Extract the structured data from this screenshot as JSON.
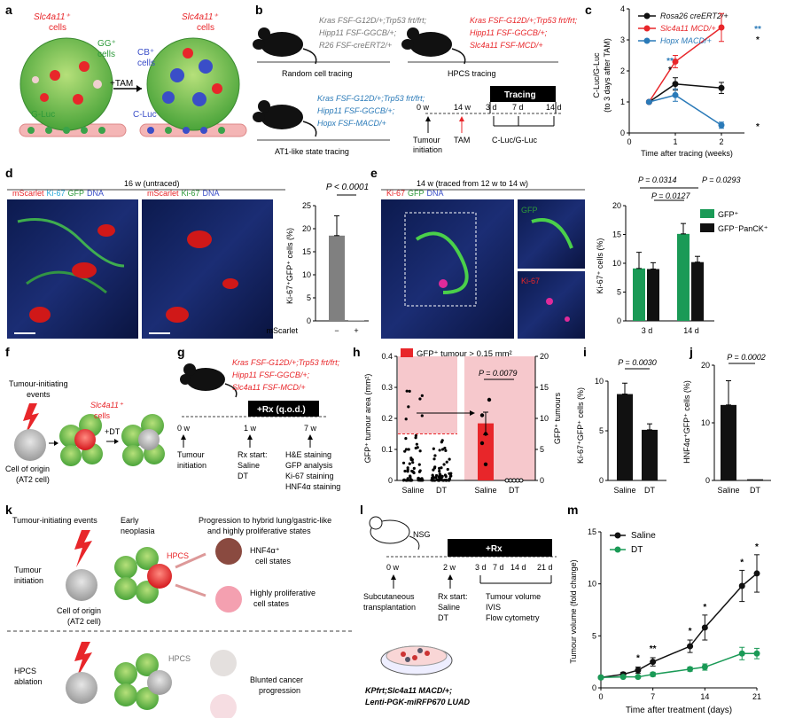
{
  "panels": {
    "a": "a",
    "b": "b",
    "c": "c",
    "d": "d",
    "e": "e",
    "f": "f",
    "g": "g",
    "h": "h",
    "i": "i",
    "j": "j",
    "k": "k",
    "l": "l",
    "m": "m"
  },
  "a": {
    "slc_left": "Slc4a11⁺",
    "slc_right": "Slc4a11⁺",
    "cells": "cells",
    "gg": "GG⁺",
    "cb": "CB⁺",
    "gluc": "G-Luc",
    "cluc": "C-Luc",
    "tam": "+TAM"
  },
  "b": {
    "random": {
      "l1": "Kras FSF-G12D/+;Trp53 frt/frt;",
      "l2": "Hipp11 FSF-GGCB/+;",
      "l3": "R26 FSF-creERT2/+",
      "title": "Random cell tracing"
    },
    "hpcs": {
      "l1": "Kras FSF-G12D/+;Trp53 frt/frt;",
      "l2": "Hipp11 FSF-GGCB/+;",
      "l3": "Slc4a11 FSF-MCD/+",
      "title": "HPCS tracing"
    },
    "at1": {
      "l1": "Kras FSF-G12D/+;Trp53 frt/frt;",
      "l2": "Hipp11 FSF-GGCB/+;",
      "l3": "Hopx FSF-MACD/+",
      "title": "AT1-like state tracing"
    },
    "timeline": {
      "tracing": "Tracing",
      "t0": "0 w",
      "t14w": "14 w",
      "t3d": "3 d",
      "t7d": "7 d",
      "t14d": "14 d",
      "tumour": "Tumour",
      "initiation": "initiation",
      "tam": "TAM",
      "cluc": "C-Luc/G-Luc"
    }
  },
  "d": {
    "title": "16 w (untraced)",
    "m_scarlet": "mScarlet",
    "ki67": "Ki-67",
    "gfp": "GFP",
    "dna": "DNA"
  },
  "e": {
    "title": "14 w (traced from 12 w to 14 w)",
    "ki67": "Ki-67",
    "gfp": "GFP",
    "dna": "DNA"
  },
  "f": {
    "l1": "Tumour-initiating",
    "l2": "events",
    "slc": "Slc4a11⁺",
    "cells": "cells",
    "dt": "+DT",
    "origin1": "Cell of origin",
    "origin2": "(AT2 cell)"
  },
  "g": {
    "l1": "Kras FSF-G12D/+;Trp53 frt/frt;",
    "l2": "Hipp11 FSF-GGCB/+;",
    "l3": "Slc4a11 FSF-MCD/+",
    "rx": "+Rx (q.o.d.)",
    "t0": "0 w",
    "t1": "1 w",
    "t7": "7 w",
    "tumour": "Tumour",
    "initiation": "initiation",
    "rxstart": "Rx start:",
    "saline": "Saline",
    "dt": "DT",
    "a1": "H&E staining",
    "a2": "GFP analysis",
    "a3": "Ki-67 staining",
    "a4": "HNF4α staining"
  },
  "k": {
    "events": "Tumour-initiating events",
    "early": "Early",
    "neoplasia": "neoplasia",
    "prog1": "Progression to hybrid lung/gastric-like",
    "prog2": "and highly proliferative states",
    "tumour": "Tumour",
    "initiation": "initiation",
    "origin1": "Cell of origin",
    "origin2": "(AT2 cell)",
    "hpcs": "HPCS",
    "hnf": "HNF4α⁺",
    "cellstates": "cell states",
    "highly": "Highly proliferative",
    "cellstates2": "cell states",
    "abl1": "HPCS",
    "abl2": "ablation",
    "blunted1": "Blunted cancer",
    "blunted2": "progression"
  },
  "l": {
    "nsg": "NSG",
    "rx": "+Rx",
    "t0": "0 w",
    "t2": "2 w",
    "t3d": "3 d",
    "t7d": "7 d",
    "t14d": "14 d",
    "t21d": "21 d",
    "subq1": "Subcutaneous",
    "subq2": "transplantation",
    "rxstart": "Rx start:",
    "saline": "Saline",
    "dt": "DT",
    "vol": "Tumour volume",
    "ivis": "IVIS",
    "flow": "Flow cytometry",
    "line1": "KPfrt;Slc4a11 MACD/+;",
    "line2": "Lenti-PGK-miRFP670 LUAD"
  },
  "colors": {
    "red": "#e8262a",
    "blue": "#2a7ab8",
    "black": "#111111",
    "green": "#1a9a56",
    "gray": "#888888"
  },
  "chart_data": [
    {
      "id": "c",
      "type": "line",
      "xlabel": "Time after tracing (weeks)",
      "ylabel": "C-Luc/G-Luc (to 3 days after TAM)",
      "xlim": [
        0,
        2.5
      ],
      "ylim": [
        0,
        4
      ],
      "xticks": [
        0,
        1,
        2
      ],
      "yticks": [
        0,
        1,
        2,
        3,
        4
      ],
      "series": [
        {
          "name": "Rosa26 creERT2/+",
          "color": "#111111",
          "x": [
            0.43,
            1,
            2
          ],
          "y": [
            1,
            1.58,
            1.45
          ],
          "err": [
            0,
            0.2,
            0.18
          ]
        },
        {
          "name": "Slc4a11 MCD/+",
          "color": "#e8262a",
          "x": [
            0.43,
            1,
            2
          ],
          "y": [
            1,
            2.3,
            3.4
          ],
          "err": [
            0,
            0.2,
            0.45
          ]
        },
        {
          "name": "Hopx MACD/+",
          "color": "#2a7ab8",
          "x": [
            0.43,
            1,
            2
          ],
          "y": [
            1,
            1.22,
            0.25
          ],
          "err": [
            0,
            0.2,
            0.1
          ]
        }
      ],
      "annotations": [
        "**",
        "*",
        "**",
        "*",
        "*"
      ]
    },
    {
      "id": "d",
      "type": "bar",
      "categories": [
        "−",
        "+"
      ],
      "values": [
        18.5,
        0.1
      ],
      "err": [
        4.3,
        0
      ],
      "ylabel": "Ki-67⁺GFP⁺ cells (%)",
      "xlabel": "mScarlet",
      "ylim": [
        0,
        25
      ],
      "yticks": [
        0,
        5,
        10,
        15,
        20,
        25
      ],
      "pvalue": "P < 0.0001"
    },
    {
      "id": "e",
      "type": "bar",
      "categories": [
        "3 d",
        "14 d"
      ],
      "series": [
        {
          "name": "GFP⁺",
          "color": "#1a9a56",
          "values": [
            9.1,
            15.1
          ],
          "err": [
            2.8,
            1.8
          ]
        },
        {
          "name": "GFP⁻PanCK⁺",
          "color": "#111111",
          "values": [
            9.0,
            10.2
          ],
          "err": [
            1.1,
            1.0
          ]
        }
      ],
      "ylabel": "Ki-67⁺ cells (%)",
      "ylim": [
        0,
        20
      ],
      "yticks": [
        0,
        5,
        10,
        15,
        20
      ],
      "pvalues": [
        "P = 0.0314",
        "P = 0.0293",
        "P = 0.0127"
      ]
    },
    {
      "id": "h",
      "type": "scatter",
      "categories": [
        "Saline",
        "DT",
        "Saline",
        "DT"
      ],
      "legend": "GFP⁺ tumour > 0.15 mm²",
      "ylabel_left": "GFP⁺ tumour area (mm²)",
      "ylabel_right": "GFP⁺ tumours",
      "ylim_left": [
        0,
        0.4
      ],
      "yticks_left": [
        0,
        0.1,
        0.2,
        0.3,
        0.4
      ],
      "ylim_right": [
        0,
        20
      ],
      "yticks_right": [
        0,
        5,
        10,
        15,
        20
      ],
      "threshold": 0.15,
      "bar_values": [
        9.2,
        0
      ],
      "bar_err": [
        1.8,
        0
      ],
      "points_right": [
        [
          10.5,
          7.5,
          13,
          6,
          2.6
        ],
        [
          0,
          0,
          0,
          0,
          0
        ]
      ],
      "pvalue": "P = 0.0079"
    },
    {
      "id": "i",
      "type": "bar",
      "categories": [
        "Saline",
        "DT"
      ],
      "values": [
        8.7,
        5.1
      ],
      "err": [
        1.1,
        0.6
      ],
      "ylabel": "Ki-67⁺GFP⁺ cells (%)",
      "ylim": [
        0,
        10
      ],
      "yticks": [
        0,
        5,
        10
      ],
      "pvalue": "P = 0.0030"
    },
    {
      "id": "j",
      "type": "bar",
      "categories": [
        "Saline",
        "DT"
      ],
      "values": [
        13.1,
        0.2
      ],
      "err": [
        4.2,
        0
      ],
      "ylabel": "HNF4α⁺GFP⁺ cells (%)",
      "ylim": [
        0,
        20
      ],
      "yticks": [
        0,
        10,
        20
      ],
      "pvalue": "P = 0.0002"
    },
    {
      "id": "m",
      "type": "line",
      "xlabel": "Time after treatment (days)",
      "ylabel": "Tumour volume (fold change)",
      "xlim": [
        0,
        21
      ],
      "ylim": [
        0,
        15
      ],
      "xticks": [
        0,
        7,
        14,
        21
      ],
      "yticks": [
        0,
        5,
        10,
        15
      ],
      "series": [
        {
          "name": "Saline",
          "color": "#111111",
          "x": [
            0,
            3,
            5,
            7,
            12,
            14,
            19,
            21
          ],
          "y": [
            1,
            1.3,
            1.7,
            2.5,
            4,
            5.8,
            9.8,
            11
          ],
          "err": [
            0,
            0.2,
            0.3,
            0.4,
            0.6,
            1.2,
            1.5,
            1.8
          ]
        },
        {
          "name": "DT",
          "color": "#1a9a56",
          "x": [
            0,
            3,
            5,
            7,
            12,
            14,
            19,
            21
          ],
          "y": [
            1,
            1.05,
            1.05,
            1.3,
            1.8,
            2.0,
            3.3,
            3.3
          ],
          "err": [
            0,
            0.1,
            0.1,
            0.2,
            0.2,
            0.3,
            0.6,
            0.5
          ]
        }
      ],
      "annotations": [
        "*",
        "**",
        "*",
        "*",
        "*",
        "*"
      ]
    }
  ]
}
